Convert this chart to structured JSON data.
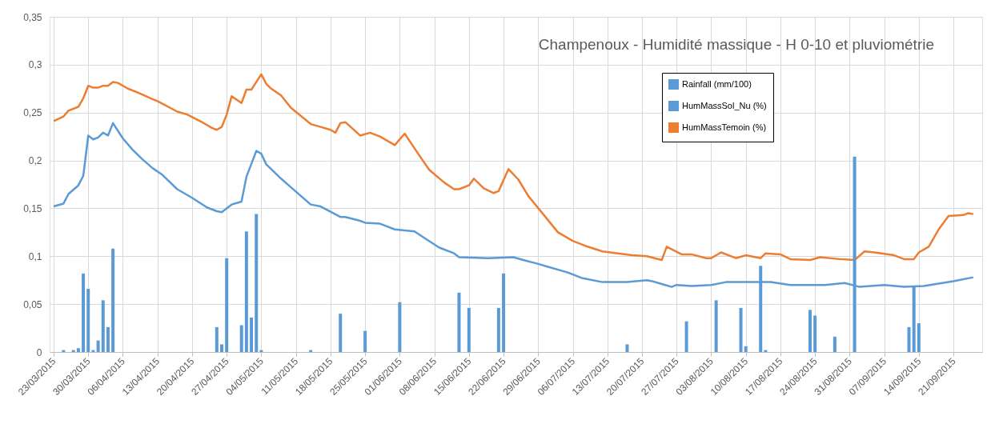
{
  "chart_data": {
    "type": "line",
    "title": "Champenoux - Humidité massique - H 0-10 et pluviométrie",
    "xlim": [
      "2015-03-23",
      "2015-09-26"
    ],
    "xticks": [
      {
        "value": "2015-03-23",
        "label": "23/03/2015"
      },
      {
        "value": "2015-03-30",
        "label": "30/03/2015"
      },
      {
        "value": "2015-04-06",
        "label": "06/04/2015"
      },
      {
        "value": "2015-04-13",
        "label": "13/04/2015"
      },
      {
        "value": "2015-04-20",
        "label": "20/04/2015"
      },
      {
        "value": "2015-04-27",
        "label": "27/04/2015"
      },
      {
        "value": "2015-05-04",
        "label": "04/05/2015"
      },
      {
        "value": "2015-05-11",
        "label": "11/05/2015"
      },
      {
        "value": "2015-05-18",
        "label": "18/05/2015"
      },
      {
        "value": "2015-05-25",
        "label": "25/05/2015"
      },
      {
        "value": "2015-06-01",
        "label": "01/06/2015"
      },
      {
        "value": "2015-06-08",
        "label": "08/06/2015"
      },
      {
        "value": "2015-06-15",
        "label": "15/06/2015"
      },
      {
        "value": "2015-06-22",
        "label": "22/06/2015"
      },
      {
        "value": "2015-06-29",
        "label": "29/06/2015"
      },
      {
        "value": "2015-07-06",
        "label": "06/07/2015"
      },
      {
        "value": "2015-07-13",
        "label": "13/07/2015"
      },
      {
        "value": "2015-07-20",
        "label": "20/07/2015"
      },
      {
        "value": "2015-07-27",
        "label": "27/07/2015"
      },
      {
        "value": "2015-08-03",
        "label": "03/08/2015"
      },
      {
        "value": "2015-08-10",
        "label": "10/08/2015"
      },
      {
        "value": "2015-08-17",
        "label": "17/08/2015"
      },
      {
        "value": "2015-08-24",
        "label": "24/08/2015"
      },
      {
        "value": "2015-08-31",
        "label": "31/08/2015"
      },
      {
        "value": "2015-09-07",
        "label": "07/09/2015"
      },
      {
        "value": "2015-09-14",
        "label": "14/09/2015"
      },
      {
        "value": "2015-09-21",
        "label": "21/09/2015"
      }
    ],
    "ylim": [
      0,
      0.35
    ],
    "yticks": [
      0,
      {
        "value": 0.05,
        "label": "0,05"
      },
      {
        "value": 0.1,
        "label": "0,1"
      },
      {
        "value": 0.15,
        "label": "0,15"
      },
      {
        "value": 0.2,
        "label": "0,2"
      },
      {
        "value": 0.25,
        "label": "0,25"
      },
      {
        "value": 0.3,
        "label": "0,3"
      },
      {
        "value": 0.35,
        "label": "0,35"
      }
    ],
    "grid": true,
    "legend": "top right",
    "series": [
      {
        "name": "Rainfall (mm/100)",
        "type": "bar",
        "color": "#5b9bd5",
        "x": [
          "2015-03-25",
          "2015-03-27",
          "2015-03-28",
          "2015-03-29",
          "2015-03-30",
          "2015-03-31",
          "2015-04-01",
          "2015-04-02",
          "2015-04-03",
          "2015-04-04",
          "2015-04-25",
          "2015-04-26",
          "2015-04-27",
          "2015-04-30",
          "2015-05-01",
          "2015-05-02",
          "2015-05-03",
          "2015-05-04",
          "2015-05-14",
          "2015-05-20",
          "2015-05-25",
          "2015-06-01",
          "2015-06-13",
          "2015-06-15",
          "2015-06-21",
          "2015-06-22",
          "2015-07-17",
          "2015-07-29",
          "2015-08-04",
          "2015-08-09",
          "2015-08-10",
          "2015-08-13",
          "2015-08-14",
          "2015-08-23",
          "2015-08-24",
          "2015-08-28",
          "2015-09-01",
          "2015-09-12",
          "2015-09-13",
          "2015-09-14"
        ],
        "values": [
          0.002,
          0.002,
          0.004,
          0.082,
          0.066,
          0.002,
          0.012,
          0.054,
          0.026,
          0.108,
          0.026,
          0.008,
          0.098,
          0.028,
          0.126,
          0.036,
          0.144,
          0.002,
          0.002,
          0.04,
          0.022,
          0.052,
          0.062,
          0.046,
          0.046,
          0.082,
          0.008,
          0.032,
          0.054,
          0.046,
          0.006,
          0.09,
          0.002,
          0.044,
          0.038,
          0.016,
          0.204,
          0.026,
          0.068,
          0.03
        ]
      },
      {
        "name": "HumMassSol_Nu (%)",
        "color": "#5b9bd5",
        "x": [
          "2015-03-23",
          "2015-03-25",
          "2015-03-26",
          "2015-03-28",
          "2015-03-29",
          "2015-03-30",
          "2015-03-31",
          "2015-04-01",
          "2015-04-02",
          "2015-04-03",
          "2015-04-04",
          "2015-04-06",
          "2015-04-08",
          "2015-04-10",
          "2015-04-12",
          "2015-04-14",
          "2015-04-17",
          "2015-04-20",
          "2015-04-23",
          "2015-04-25",
          "2015-04-26",
          "2015-04-28",
          "2015-04-30",
          "2015-05-01",
          "2015-05-03",
          "2015-05-04",
          "2015-05-05",
          "2015-05-07",
          "2015-05-08",
          "2015-05-10",
          "2015-05-14",
          "2015-05-16",
          "2015-05-20",
          "2015-05-21",
          "2015-05-24",
          "2015-05-25",
          "2015-05-28",
          "2015-05-31",
          "2015-06-04",
          "2015-06-06",
          "2015-06-09",
          "2015-06-12",
          "2015-06-13",
          "2015-06-19",
          "2015-06-24",
          "2015-06-26",
          "2015-06-29",
          "2015-07-01",
          "2015-07-05",
          "2015-07-08",
          "2015-07-12",
          "2015-07-17",
          "2015-07-21",
          "2015-07-22",
          "2015-07-24",
          "2015-07-26",
          "2015-07-27",
          "2015-07-30",
          "2015-08-03",
          "2015-08-06",
          "2015-08-15",
          "2015-08-19",
          "2015-08-26",
          "2015-08-30",
          "2015-09-02",
          "2015-09-07",
          "2015-09-11",
          "2015-09-15",
          "2015-09-21",
          "2015-09-25"
        ],
        "values": [
          0.152,
          0.155,
          0.165,
          0.174,
          0.184,
          0.226,
          0.222,
          0.224,
          0.229,
          0.226,
          0.239,
          0.223,
          0.211,
          0.201,
          0.192,
          0.185,
          0.17,
          0.161,
          0.151,
          0.147,
          0.146,
          0.154,
          0.157,
          0.183,
          0.21,
          0.207,
          0.196,
          0.186,
          0.181,
          0.172,
          0.154,
          0.152,
          0.141,
          0.141,
          0.137,
          0.135,
          0.134,
          0.128,
          0.126,
          0.119,
          0.109,
          0.103,
          0.099,
          0.098,
          0.099,
          0.096,
          0.092,
          0.089,
          0.083,
          0.077,
          0.073,
          0.073,
          0.075,
          0.074,
          0.071,
          0.068,
          0.07,
          0.069,
          0.07,
          0.073,
          0.073,
          0.07,
          0.07,
          0.072,
          0.068,
          0.07,
          0.068,
          0.069,
          0.074,
          0.078
        ]
      },
      {
        "name": "HumMassTemoin (%)",
        "color": "#ed7d31",
        "x": [
          "2015-03-23",
          "2015-03-25",
          "2015-03-26",
          "2015-03-28",
          "2015-03-29",
          "2015-03-30",
          "2015-03-31",
          "2015-04-01",
          "2015-04-02",
          "2015-04-03",
          "2015-04-04",
          "2015-04-05",
          "2015-04-07",
          "2015-04-09",
          "2015-04-12",
          "2015-04-13",
          "2015-04-17",
          "2015-04-19",
          "2015-04-22",
          "2015-04-24",
          "2015-04-25",
          "2015-04-26",
          "2015-04-27",
          "2015-04-28",
          "2015-04-30",
          "2015-05-01",
          "2015-05-02",
          "2015-05-04",
          "2015-05-05",
          "2015-05-06",
          "2015-05-08",
          "2015-05-10",
          "2015-05-14",
          "2015-05-16",
          "2015-05-18",
          "2015-05-19",
          "2015-05-20",
          "2015-05-21",
          "2015-05-24",
          "2015-05-26",
          "2015-05-28",
          "2015-05-31",
          "2015-06-02",
          "2015-06-05",
          "2015-06-07",
          "2015-06-10",
          "2015-06-12",
          "2015-06-13",
          "2015-06-15",
          "2015-06-16",
          "2015-06-18",
          "2015-06-20",
          "2015-06-21",
          "2015-06-23",
          "2015-06-25",
          "2015-06-27",
          "2015-06-30",
          "2015-07-03",
          "2015-07-06",
          "2015-07-09",
          "2015-07-12",
          "2015-07-18",
          "2015-07-21",
          "2015-07-24",
          "2015-07-25",
          "2015-07-28",
          "2015-07-30",
          "2015-08-02",
          "2015-08-03",
          "2015-08-05",
          "2015-08-08",
          "2015-08-10",
          "2015-08-13",
          "2015-08-14",
          "2015-08-17",
          "2015-08-19",
          "2015-08-23",
          "2015-08-25",
          "2015-08-29",
          "2015-09-01",
          "2015-09-03",
          "2015-09-05",
          "2015-09-09",
          "2015-09-11",
          "2015-09-13",
          "2015-09-14",
          "2015-09-16",
          "2015-09-18",
          "2015-09-20",
          "2015-09-23",
          "2015-09-24",
          "2015-09-25"
        ],
        "values": [
          0.241,
          0.246,
          0.252,
          0.256,
          0.265,
          0.278,
          0.276,
          0.276,
          0.278,
          0.278,
          0.282,
          0.281,
          0.275,
          0.271,
          0.264,
          0.262,
          0.251,
          0.248,
          0.24,
          0.234,
          0.232,
          0.235,
          0.248,
          0.267,
          0.26,
          0.274,
          0.274,
          0.29,
          0.28,
          0.275,
          0.268,
          0.255,
          0.238,
          0.235,
          0.232,
          0.229,
          0.239,
          0.24,
          0.226,
          0.229,
          0.225,
          0.216,
          0.228,
          0.205,
          0.19,
          0.177,
          0.17,
          0.17,
          0.174,
          0.181,
          0.171,
          0.166,
          0.168,
          0.191,
          0.18,
          0.163,
          0.144,
          0.125,
          0.116,
          0.11,
          0.105,
          0.101,
          0.1,
          0.096,
          0.11,
          0.102,
          0.102,
          0.098,
          0.098,
          0.104,
          0.098,
          0.101,
          0.098,
          0.103,
          0.102,
          0.097,
          0.096,
          0.099,
          0.097,
          0.096,
          0.105,
          0.104,
          0.101,
          0.097,
          0.097,
          0.104,
          0.11,
          0.128,
          0.142,
          0.143,
          0.145,
          0.144
        ]
      }
    ]
  }
}
